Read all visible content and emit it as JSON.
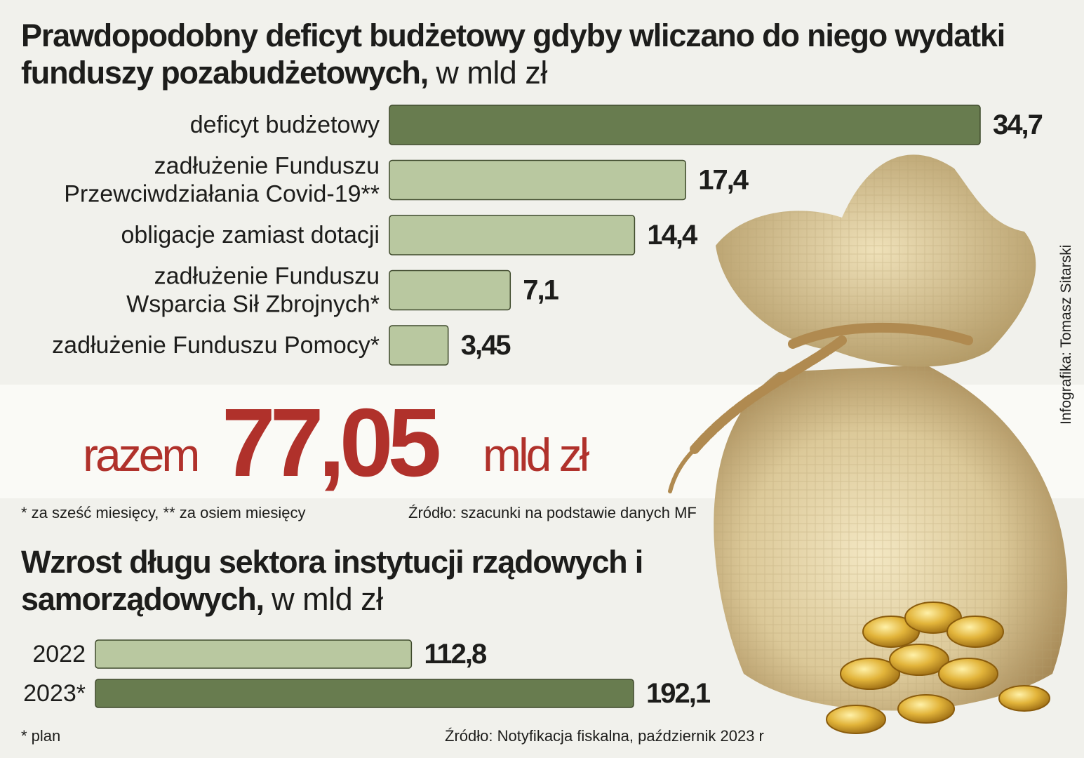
{
  "chart_data": [
    {
      "type": "bar",
      "orientation": "horizontal",
      "title": "Prawdopodobny deficyt budżetowy gdyby wliczano do niego wydatki funduszy pozabudżetowych,",
      "unit": "w mld zł",
      "categories": [
        [
          "deficyt budżetowy"
        ],
        [
          "zadłużenie Funduszu",
          "Przewciwdziałania Covid-19**"
        ],
        [
          "obligacje zamiast dotacji"
        ],
        [
          "zadłużenie Funduszu",
          "Wsparcia Sił Zbrojnych*"
        ],
        [
          "zadłużenie Funduszu Pomocy*"
        ]
      ],
      "values": [
        34.7,
        17.4,
        14.4,
        7.1,
        3.45
      ],
      "value_labels": [
        "34,7",
        "17,4",
        "14,4",
        "7,1",
        "3,45"
      ],
      "colors": [
        "#687c4f",
        "#b9c8a0",
        "#b9c8a0",
        "#b9c8a0",
        "#b9c8a0"
      ],
      "xlim": [
        0,
        34.7
      ],
      "grid": false,
      "total": {
        "label": "razem",
        "value": "77,05",
        "unit": "mld zł",
        "color": "#b0312b"
      },
      "footnote": "* za sześć miesięcy, ** za osiem miesięcy",
      "source": "Źródło: szacunki na podstawie danych MF"
    },
    {
      "type": "bar",
      "orientation": "horizontal",
      "title": "Wzrost długu sektora instytucji rządowych i samorządowych,",
      "unit": "w mld zł",
      "categories": [
        [
          "2022"
        ],
        [
          "2023*"
        ]
      ],
      "values": [
        112.8,
        192.1
      ],
      "value_labels": [
        "112,8",
        "192,1"
      ],
      "colors": [
        "#b9c8a0",
        "#687c4f"
      ],
      "xlim": [
        0,
        192.1
      ],
      "grid": false,
      "footnote": "* plan",
      "source": "Źródło: Notyfikacja fiskalna, październik 2023 r"
    }
  ],
  "credit": "Infografika: Tomasz Sitarski",
  "illustration": "money-bag-with-gold-coins"
}
